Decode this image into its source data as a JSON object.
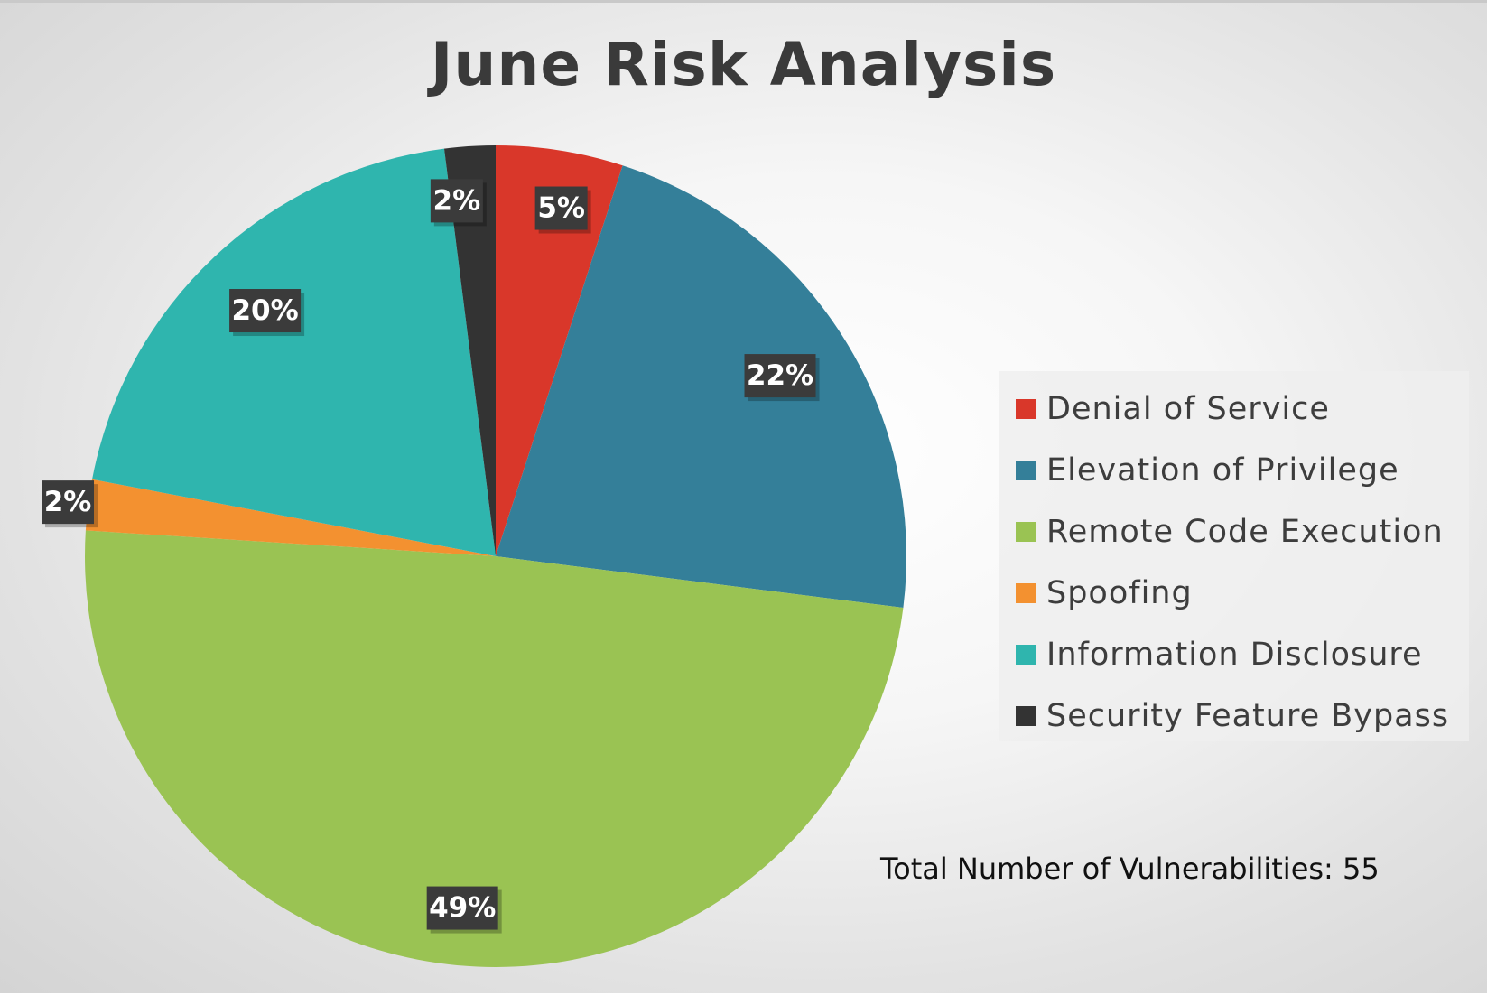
{
  "chart_data": {
    "type": "pie",
    "title": "June Risk Analysis",
    "slices": [
      {
        "name": "Denial of Service",
        "value": 5,
        "label": "5%",
        "color": "#d9372a"
      },
      {
        "name": "Elevation of Privilege",
        "value": 22,
        "label": "22%",
        "color": "#347f99"
      },
      {
        "name": "Remote Code Execution",
        "value": 49,
        "label": "49%",
        "color": "#9ac353"
      },
      {
        "name": "Spoofing",
        "value": 2,
        "label": "2%",
        "color": "#f39130"
      },
      {
        "name": "Information Disclosure",
        "value": 20,
        "label": "20%",
        "color": "#2fb5ae"
      },
      {
        "name": "Security Feature Bypass",
        "value": 2,
        "label": "2%",
        "color": "#333333"
      }
    ],
    "legend_position": "right",
    "annotation": "Total Number of Vulnerabilities: 55"
  }
}
